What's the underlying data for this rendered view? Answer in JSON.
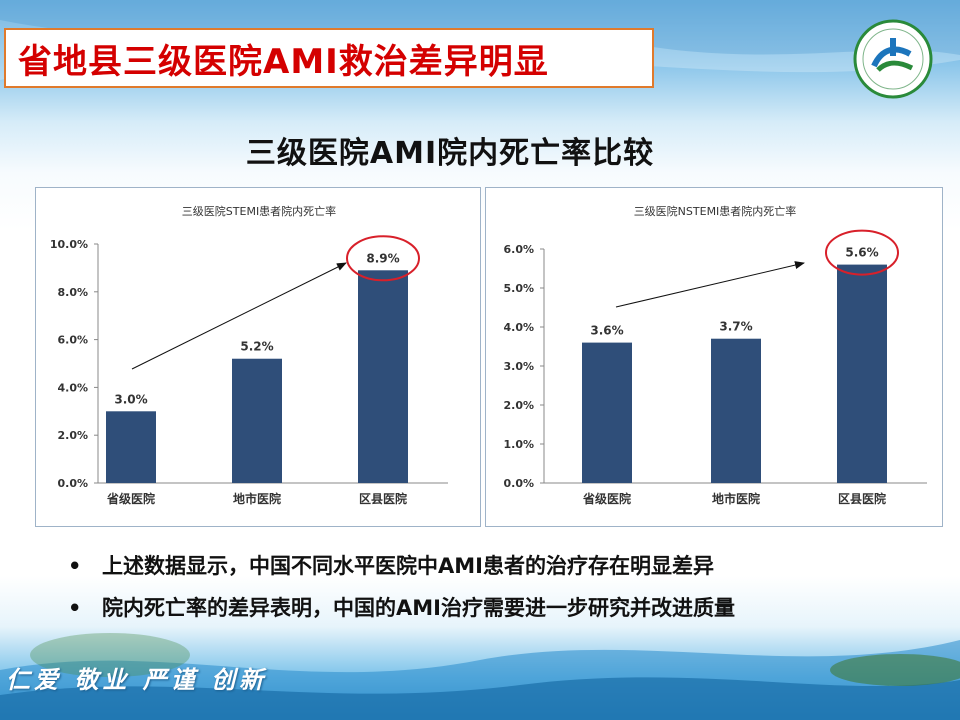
{
  "slide": {
    "title": "省地县三级医院AMI救治差异明显",
    "subtitle": "三级医院AMI院内死亡率比较",
    "bullets": [
      "上述数据显示，中国不同水平医院中AMI患者的治疗存在明显差异",
      "院内死亡率的差异表明，中国的AMI治疗需要进一步研究并改进质量"
    ],
    "bullet_symbol": "•",
    "motto": "仁爱 敬业 严谨 创新",
    "colors": {
      "title_text": "#d40000",
      "title_border": "#e07a2c",
      "bar": "#2f4e79",
      "highlight_circle": "#d8202a"
    }
  },
  "chart_data": [
    {
      "type": "bar",
      "title": "三级医院STEMI患者院内死亡率",
      "categories": [
        "省级医院",
        "地市医院",
        "区县医院"
      ],
      "values": [
        3.0,
        5.2,
        8.9
      ],
      "value_labels": [
        "3.0%",
        "5.2%",
        "8.9%"
      ],
      "ylim": [
        0,
        10
      ],
      "yticks": [
        0,
        2,
        4,
        6,
        8,
        10
      ],
      "ytick_labels": [
        "0.0%",
        "2.0%",
        "4.0%",
        "6.0%",
        "8.0%",
        "10.0%"
      ],
      "annotations": [
        "trend arrow",
        "highlight circle on 区县医院"
      ],
      "grid": false,
      "legend": "none"
    },
    {
      "type": "bar",
      "title": "三级医院NSTEMI患者院内死亡率",
      "categories": [
        "省级医院",
        "地市医院",
        "区县医院"
      ],
      "values": [
        3.6,
        3.7,
        5.6
      ],
      "value_labels": [
        "3.6%",
        "3.7%",
        "5.6%"
      ],
      "ylim": [
        0,
        6
      ],
      "yticks": [
        0,
        1,
        2,
        3,
        4,
        5,
        6
      ],
      "ytick_labels": [
        "0.0%",
        "1.0%",
        "2.0%",
        "3.0%",
        "4.0%",
        "5.0%",
        "6.0%"
      ],
      "annotations": [
        "trend arrow",
        "highlight circle on 区县医院"
      ],
      "grid": false,
      "legend": "none"
    }
  ]
}
